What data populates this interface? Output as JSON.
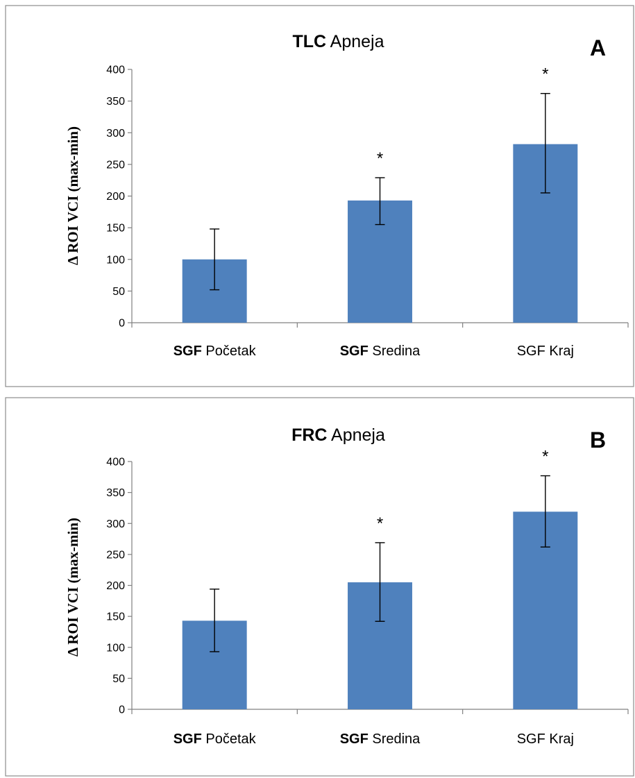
{
  "chart_data": [
    {
      "type": "bar",
      "panel": "A",
      "title_bold": "TLC",
      "title_rest": " Apneja",
      "ylabel": "Δ ROI VCI (max-min)",
      "ylim": [
        0,
        400
      ],
      "yticks": [
        0,
        50,
        100,
        150,
        200,
        250,
        300,
        350,
        400
      ],
      "categories": [
        {
          "prefix": "SGF",
          "rest": " Početak",
          "prefix_bold": true
        },
        {
          "prefix": "SGF",
          "rest": " Sredina",
          "prefix_bold": true
        },
        {
          "prefix": "SGF",
          "rest": " Kraj",
          "prefix_bold": false
        }
      ],
      "values": [
        100,
        193,
        282
      ],
      "error_low": [
        52,
        155,
        205
      ],
      "error_high": [
        148,
        229,
        362
      ],
      "annotations": [
        "",
        "*",
        "*"
      ],
      "bar_color": "#4f81bd"
    },
    {
      "type": "bar",
      "panel": "B",
      "title_bold": "FRC",
      "title_rest": " Apneja",
      "ylabel": "Δ ROI VCI (max-min)",
      "ylim": [
        0,
        400
      ],
      "yticks": [
        0,
        50,
        100,
        150,
        200,
        250,
        300,
        350,
        400
      ],
      "categories": [
        {
          "prefix": "SGF",
          "rest": " Početak",
          "prefix_bold": true
        },
        {
          "prefix": "SGF",
          "rest": " Sredina",
          "prefix_bold": true
        },
        {
          "prefix": "SGF",
          "rest": " Kraj",
          "prefix_bold": false
        }
      ],
      "values": [
        143,
        205,
        319
      ],
      "error_low": [
        93,
        142,
        262
      ],
      "error_high": [
        194,
        269,
        377
      ],
      "annotations": [
        "",
        "*",
        "*"
      ],
      "bar_color": "#4f81bd"
    }
  ]
}
